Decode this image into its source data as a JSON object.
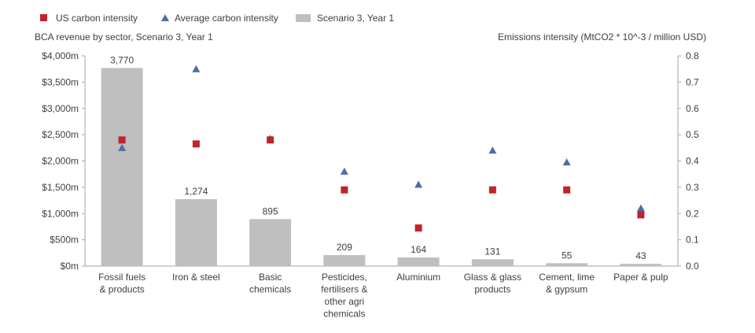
{
  "chart_data": {
    "type": "bar",
    "left_axis_title": "BCA revenue by sector, Scenario 3, Year 1",
    "right_axis_title": "Emissions intensity (MtCO2 * 10^-3 / million USD)",
    "categories": [
      [
        "Fossil fuels",
        "& products"
      ],
      [
        "Iron & steel"
      ],
      [
        "Basic",
        "chemicals"
      ],
      [
        "Pesticides,",
        "fertilisers &",
        "other agri",
        "chemicals"
      ],
      [
        "Aluminium"
      ],
      [
        "Glass & glass",
        "products"
      ],
      [
        "Cement, lime",
        "& gypsum"
      ],
      [
        "Paper & pulp"
      ]
    ],
    "series": [
      {
        "name": "Scenario 3, Year 1",
        "kind": "bar",
        "axis": "left",
        "color": "#bfbfbf",
        "values": [
          3770,
          1274,
          895,
          209,
          164,
          131,
          55,
          43
        ],
        "data_labels": [
          "3,770",
          "1,274",
          "895",
          "209",
          "164",
          "131",
          "55",
          "43"
        ]
      },
      {
        "name": "US carbon intensity",
        "kind": "square-marker",
        "axis": "right",
        "color": "#c0232c",
        "values": [
          0.48,
          0.465,
          0.48,
          0.29,
          0.145,
          0.29,
          0.29,
          0.195
        ]
      },
      {
        "name": "Average carbon intensity",
        "kind": "triangle-marker",
        "axis": "right",
        "color": "#4a6fa5",
        "values": [
          0.45,
          0.75,
          0.485,
          0.36,
          0.31,
          0.44,
          0.395,
          0.22
        ]
      }
    ],
    "left_axis": {
      "min": 0,
      "max": 4000,
      "ticks": [
        "$0m",
        "$500m",
        "$1,000m",
        "$1,500m",
        "$2,000m",
        "$2,500m",
        "$3,000m",
        "$3,500m",
        "$4,000m"
      ]
    },
    "right_axis": {
      "min": 0,
      "max": 0.8,
      "ticks": [
        "0.0",
        "0.1",
        "0.2",
        "0.3",
        "0.4",
        "0.5",
        "0.6",
        "0.7",
        "0.8"
      ]
    },
    "legend_position": "top-left",
    "grid": false
  }
}
